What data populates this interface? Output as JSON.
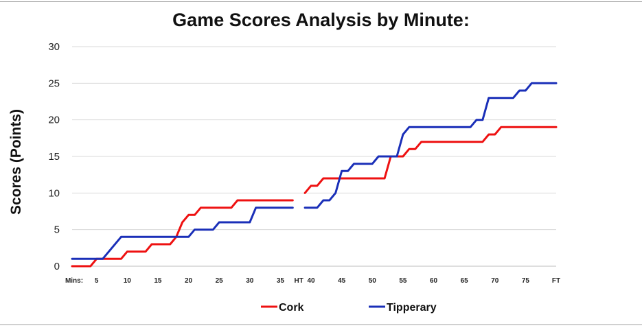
{
  "chart_data": {
    "type": "line",
    "title": "Game Scores Analysis by Minute:",
    "xlabel": "",
    "ylabel": "Scores (Points)",
    "ylim": [
      0,
      30
    ],
    "yticks": [
      0,
      5,
      10,
      15,
      20,
      25,
      30
    ],
    "grid": true,
    "legend_position": "bottom",
    "x_axis_prefix": "Mins:",
    "xticks": [
      "5",
      "10",
      "15",
      "20",
      "25",
      "30",
      "35",
      "HT",
      "40",
      "45",
      "50",
      "55",
      "60",
      "65",
      "70",
      "75",
      "FT"
    ],
    "xlim": [
      1,
      80
    ],
    "halftime_marker": 38,
    "series": [
      {
        "name": "Cork",
        "color": "#ee1111",
        "segments": [
          [
            [
              1,
              0
            ],
            [
              4,
              0
            ],
            [
              5,
              1
            ],
            [
              9,
              1
            ],
            [
              10,
              2
            ],
            [
              13,
              2
            ],
            [
              14,
              3
            ],
            [
              17,
              3
            ],
            [
              18,
              4
            ],
            [
              19,
              6
            ],
            [
              20,
              7
            ],
            [
              21,
              7
            ],
            [
              22,
              8
            ],
            [
              27,
              8
            ],
            [
              28,
              9
            ],
            [
              37,
              9
            ]
          ],
          [
            [
              39,
              10
            ],
            [
              40,
              11
            ],
            [
              41,
              11
            ],
            [
              42,
              12
            ],
            [
              52,
              12
            ],
            [
              53,
              15
            ],
            [
              55,
              15
            ],
            [
              56,
              16
            ],
            [
              57,
              16
            ],
            [
              58,
              17
            ],
            [
              68,
              17
            ],
            [
              69,
              18
            ],
            [
              70,
              18
            ],
            [
              71,
              19
            ],
            [
              80,
              19
            ]
          ]
        ]
      },
      {
        "name": "Tipperary",
        "color": "#1a2fb8",
        "segments": [
          [
            [
              1,
              1
            ],
            [
              6,
              1
            ],
            [
              9,
              4
            ],
            [
              18,
              4
            ],
            [
              20,
              4
            ],
            [
              21,
              5
            ],
            [
              24,
              5
            ],
            [
              25,
              6
            ],
            [
              30,
              6
            ],
            [
              31,
              8
            ],
            [
              37,
              8
            ]
          ],
          [
            [
              39,
              8
            ],
            [
              41,
              8
            ],
            [
              42,
              9
            ],
            [
              43,
              9
            ],
            [
              44,
              10
            ],
            [
              45,
              13
            ],
            [
              46,
              13
            ],
            [
              47,
              14
            ],
            [
              50,
              14
            ],
            [
              51,
              15
            ],
            [
              54,
              15
            ],
            [
              55,
              18
            ],
            [
              56,
              19
            ],
            [
              66,
              19
            ],
            [
              67,
              20
            ],
            [
              68,
              20
            ],
            [
              69,
              23
            ],
            [
              73,
              23
            ],
            [
              74,
              24
            ],
            [
              75,
              24
            ],
            [
              76,
              25
            ],
            [
              80,
              25
            ]
          ]
        ]
      }
    ]
  }
}
